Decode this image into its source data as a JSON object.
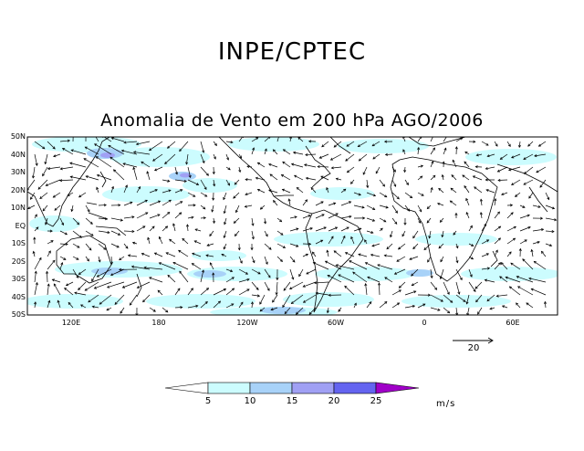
{
  "header": {
    "title": "INPE/CPTEC"
  },
  "map": {
    "title": "Anomalia de Vento em 200 hPa AGO/2006",
    "lat_labels": [
      "50N",
      "40N",
      "30N",
      "20N",
      "10N",
      "EQ",
      "10S",
      "20S",
      "30S",
      "40S",
      "50S"
    ],
    "lon_labels": [
      "120E",
      "180",
      "120W",
      "60W",
      "0",
      "60E"
    ],
    "reference_vector": {
      "label": "20",
      "unit": "m/s"
    }
  },
  "colorbar": {
    "ticks": [
      "5",
      "10",
      "15",
      "20",
      "25"
    ],
    "unit": "m/s",
    "colors": [
      "#ffffff",
      "#ccfcfe",
      "#a8d2f8",
      "#a0a0f4",
      "#6464f0",
      "#a000c8"
    ]
  },
  "fill_colors": {
    "light": "#ccfcfe",
    "medium": "#a8d2f8",
    "strong": "#a0a0f4"
  }
}
